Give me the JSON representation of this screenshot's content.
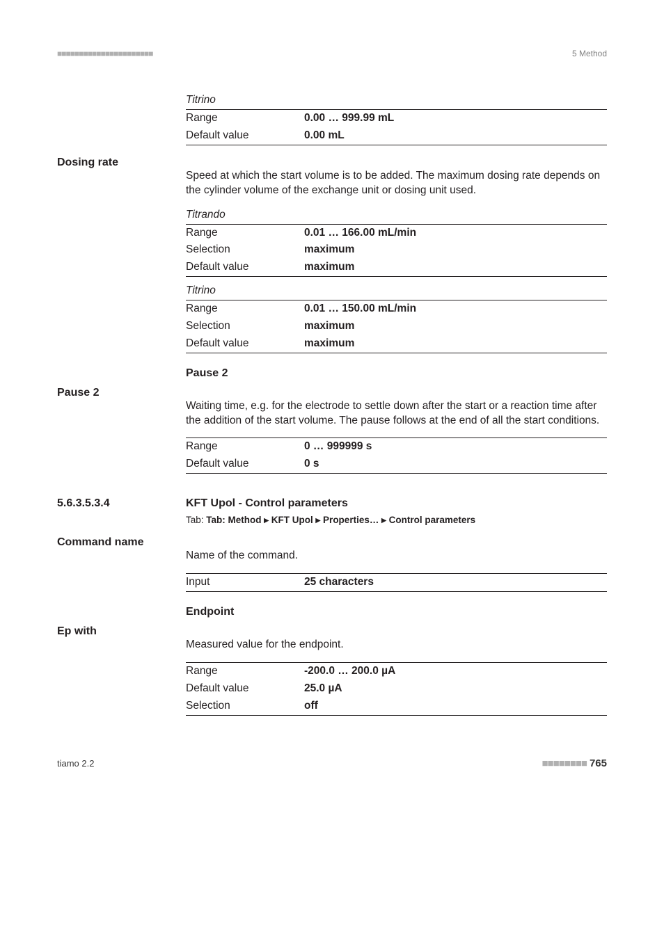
{
  "topbar": {
    "left": "■■■■■■■■■■■■■■■■■■■■■■",
    "right": "5 Method"
  },
  "titrino1": {
    "head": "Titrino",
    "rows": [
      {
        "k": "Range",
        "v": "0.00 … 999.99 mL"
      },
      {
        "k": "Default value",
        "v": "0.00 mL"
      }
    ]
  },
  "dosing": {
    "label": "Dosing rate",
    "para": "Speed at which the start volume is to be added. The maximum dosing rate depends on the cylinder volume of the exchange unit or dosing unit used.",
    "titrando": {
      "head": "Titrando",
      "rows": [
        {
          "k": "Range",
          "v": "0.01 … 166.00 mL/min"
        },
        {
          "k": "Selection",
          "v": "maximum"
        },
        {
          "k": "Default value",
          "v": "maximum"
        }
      ]
    },
    "titrino": {
      "head": "Titrino",
      "rows": [
        {
          "k": "Range",
          "v": "0.01 … 150.00 mL/min"
        },
        {
          "k": "Selection",
          "v": "maximum"
        },
        {
          "k": "Default value",
          "v": "maximum"
        }
      ]
    }
  },
  "pause2": {
    "heading": "Pause 2",
    "label": "Pause 2",
    "para": "Waiting time, e.g. for the electrode to settle down after the start or a reaction time after the addition of the start volume. The pause follows at the end of all the start conditions.",
    "rows": [
      {
        "k": "Range",
        "v": "0 … 999999 s"
      },
      {
        "k": "Default value",
        "v": "0 s"
      }
    ]
  },
  "section": {
    "num": "5.6.3.5.3.4",
    "title": "KFT Upol - Control parameters",
    "tabline": "Tab: Method ▸ KFT Upol ▸ Properties… ▸ Control parameters"
  },
  "command": {
    "label": "Command name",
    "para": "Name of the command.",
    "rows": [
      {
        "k": "Input",
        "v": "25 characters"
      }
    ]
  },
  "endpoint": {
    "heading": "Endpoint",
    "label": "Ep with",
    "para": "Measured value for the endpoint.",
    "rows": [
      {
        "k": "Range",
        "v": "-200.0 … 200.0 µA"
      },
      {
        "k": "Default value",
        "v": "25.0 µA"
      },
      {
        "k": "Selection",
        "v": "off"
      }
    ]
  },
  "footer": {
    "left": "tiamo 2.2",
    "dashes": "■■■■■■■■",
    "page": "765"
  }
}
